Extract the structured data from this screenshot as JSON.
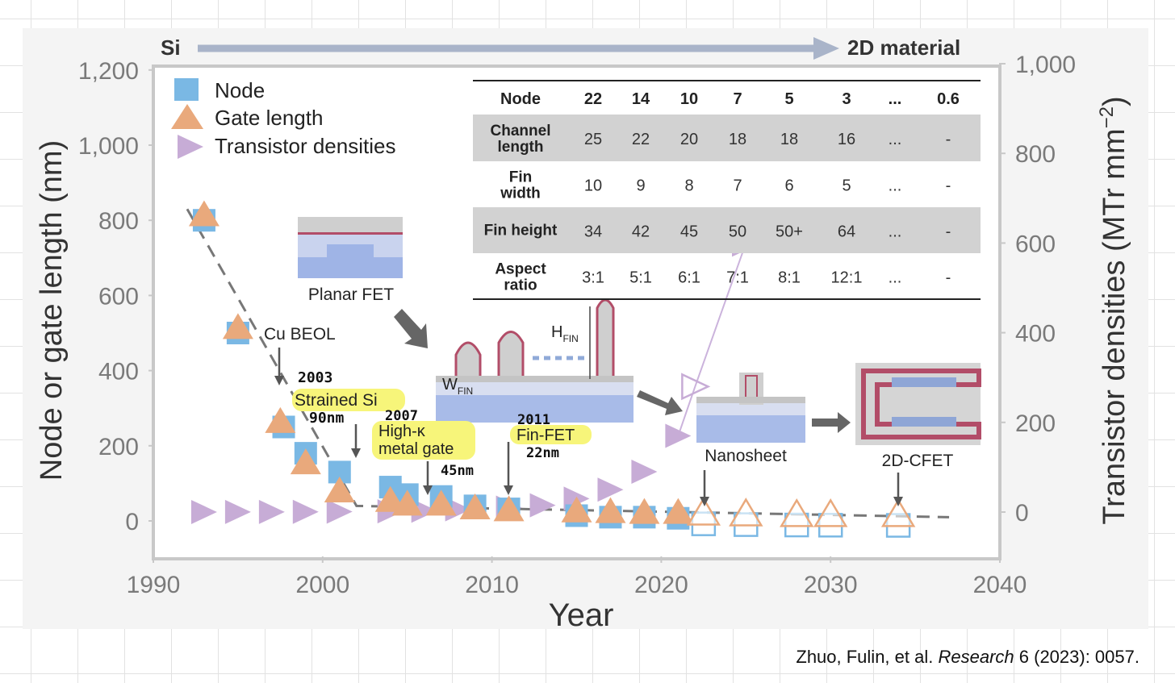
{
  "chart_data": {
    "type": "scatter",
    "xlabel": "Year",
    "ylabel": "Node or gate length (nm)",
    "ylabel_right": "Transistor densities (MTr mm",
    "ylabel_right_sup": "−2",
    "ylabel_right_close": ")",
    "xlim": [
      1990,
      2040
    ],
    "ylim": [
      -80,
      1200
    ],
    "ylim_right": [
      -100,
      1000
    ],
    "xticks": [
      "1990",
      "2000",
      "2010",
      "2020",
      "2030",
      "2040"
    ],
    "yticks": [
      "1,200",
      "1,000",
      "800",
      "600",
      "400",
      "200",
      "0"
    ],
    "yticks_right": [
      "1,000",
      "800",
      "600",
      "400",
      "200",
      "0"
    ],
    "grid": false,
    "legend_position": "top-left",
    "legend": [
      "Node",
      "Gate length",
      "Transistor densities"
    ],
    "series": [
      {
        "name": "Node",
        "marker": "square",
        "color": "#7ab8e4",
        "points": [
          [
            1993,
            800
          ],
          [
            1995,
            500
          ],
          [
            1997.7,
            250
          ],
          [
            1999,
            180
          ],
          [
            2001,
            130
          ],
          [
            2004,
            90
          ],
          [
            2005,
            70
          ],
          [
            2007,
            65
          ],
          [
            2009,
            40
          ],
          [
            2011,
            32
          ],
          [
            2015,
            14
          ],
          [
            2017,
            10
          ],
          [
            2019,
            10
          ],
          [
            2021,
            7
          ]
        ],
        "projected": [
          [
            2022.5,
            5
          ],
          [
            2025,
            3
          ],
          [
            2028,
            2
          ],
          [
            2030,
            1.5
          ],
          [
            2034,
            1
          ]
        ]
      },
      {
        "name": "Gate length",
        "marker": "triangle",
        "color": "#e9a97c",
        "points": [
          [
            1993,
            810
          ],
          [
            1995,
            510
          ],
          [
            1997.5,
            260
          ],
          [
            1999,
            150
          ],
          [
            2001,
            75
          ],
          [
            2004,
            50
          ],
          [
            2005,
            40
          ],
          [
            2007,
            40
          ],
          [
            2009,
            30
          ],
          [
            2011,
            25
          ],
          [
            2015,
            22
          ],
          [
            2017,
            20
          ],
          [
            2019,
            18
          ],
          [
            2021,
            18
          ]
        ],
        "projected": [
          [
            2022.5,
            16
          ],
          [
            2025,
            14
          ],
          [
            2028,
            12
          ],
          [
            2030,
            12
          ],
          [
            2034,
            12
          ]
        ]
      },
      {
        "name": "Transistor densities",
        "marker": "triangle-right",
        "color": "#c7acd6",
        "points": [
          [
            1993,
            0.1
          ],
          [
            1995,
            0.2
          ],
          [
            1997,
            0.3
          ],
          [
            1999,
            0.5
          ],
          [
            2001,
            1
          ],
          [
            2004,
            1.5
          ],
          [
            2006,
            3
          ],
          [
            2008,
            6
          ],
          [
            2011,
            10
          ],
          [
            2013,
            15
          ],
          [
            2015,
            30
          ],
          [
            2017,
            50
          ],
          [
            2019,
            90
          ],
          [
            2021,
            170
          ]
        ],
        "projected": [
          [
            2022,
            280
          ],
          [
            2025,
            600
          ]
        ]
      }
    ],
    "trend_line": [
      [
        1992,
        830
      ],
      [
        2002,
        40
      ],
      [
        2037,
        10
      ]
    ],
    "banner": {
      "left": "Si",
      "right": "2D material"
    },
    "annotations": [
      {
        "text": "Planar FET"
      },
      {
        "text": "Cu BEOL"
      },
      {
        "text": "2003"
      },
      {
        "text": "Strained Si"
      },
      {
        "text": "90nm"
      },
      {
        "text": "2007"
      },
      {
        "text": "High-κ"
      },
      {
        "text": "metal gate"
      },
      {
        "text": "45nm"
      },
      {
        "text": "2011"
      },
      {
        "text": "Fin-FET"
      },
      {
        "text": "22nm"
      },
      {
        "text": "Nanosheet"
      },
      {
        "text": "2D-CFET"
      }
    ],
    "fin_labels": {
      "w": "W",
      "w_sub": "FIN",
      "h": "H",
      "h_sub": "FIN"
    },
    "table": {
      "header": [
        "Node",
        "22",
        "14",
        "10",
        "7",
        "5",
        "3",
        "...",
        "0.6"
      ],
      "rows": [
        {
          "label": [
            "Channel",
            "length"
          ],
          "values": [
            "25",
            "22",
            "20",
            "18",
            "18",
            "16",
            "...",
            "-"
          ]
        },
        {
          "label": [
            "Fin",
            "width"
          ],
          "values": [
            "10",
            "9",
            "8",
            "7",
            "6",
            "5",
            "...",
            "-"
          ]
        },
        {
          "label": [
            "Fin height"
          ],
          "values": [
            "34",
            "42",
            "45",
            "50",
            "50+",
            "64",
            "...",
            "-"
          ]
        },
        {
          "label": [
            "Aspect",
            "ratio"
          ],
          "values": [
            "3:1",
            "5:1",
            "6:1",
            "7:1",
            "8:1",
            "12:1",
            "...",
            "-"
          ]
        }
      ]
    }
  },
  "citation": {
    "authors": "Zhuo, Fulin, et al.",
    "journal": "Research",
    "details": "6 (2023): 0057."
  }
}
